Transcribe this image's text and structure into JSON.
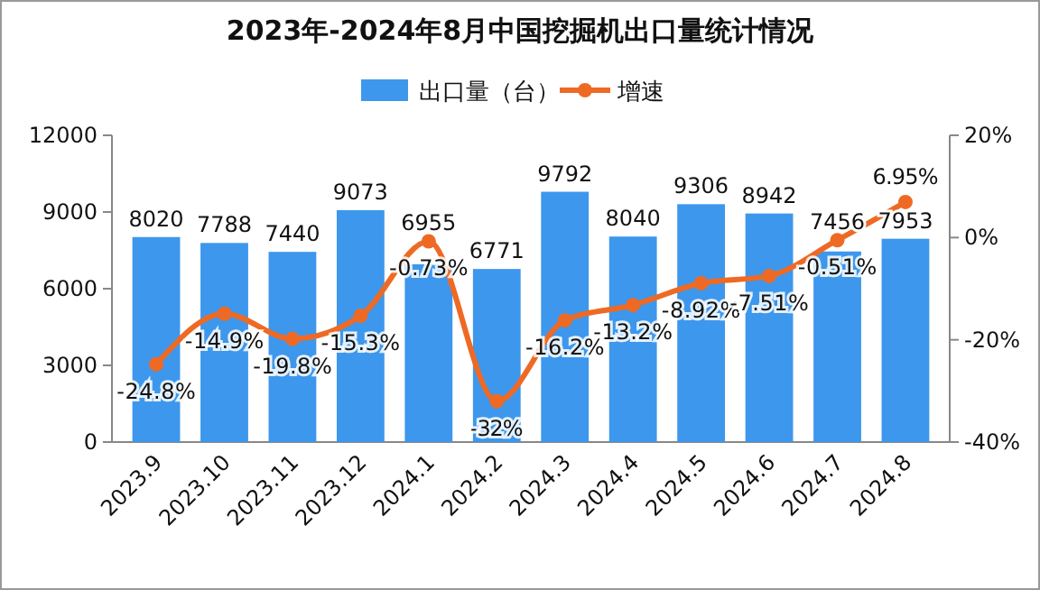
{
  "chart_data": {
    "type": "bar",
    "title": "2023年-2024年8月中国挖掘机出口量统计情况",
    "categories": [
      "2023.9",
      "2023.10",
      "2023.11",
      "2023.12",
      "2024.1",
      "2024.2",
      "2024.3",
      "2024.4",
      "2024.5",
      "2024.6",
      "2024.7",
      "2024.8"
    ],
    "series": [
      {
        "name": "出口量（台）",
        "color": "#3d97ec",
        "values": [
          8020,
          7788,
          7440,
          9073,
          6955,
          6771,
          9792,
          8040,
          9306,
          8942,
          7456,
          7953
        ]
      },
      {
        "name": "增速",
        "type": "line",
        "axis": "y2",
        "color": "#ee6a24",
        "marker": "circle",
        "values": [
          -24.8,
          -14.9,
          -19.8,
          -15.3,
          -0.73,
          -32,
          -16.2,
          -13.2,
          -8.92,
          -7.51,
          -0.51,
          6.95
        ],
        "value_labels": [
          "-24.8%",
          "-14.9%",
          "-19.8%",
          "-15.3%",
          "-0.73%",
          "-32%",
          "-16.2%",
          "-13.2%",
          "-8.92%",
          "-7.51%",
          "-0.51%",
          "6.95%"
        ]
      }
    ],
    "data_labels": true,
    "ylim": [
      0,
      12000
    ],
    "yticks": [
      0,
      3000,
      6000,
      9000,
      12000
    ],
    "y2lim": [
      -40,
      20
    ],
    "y2ticks": [
      {
        "value": -40,
        "label": "-40%"
      },
      {
        "value": -20,
        "label": "-20%"
      },
      {
        "value": 0,
        "label": "0%"
      },
      {
        "value": 20,
        "label": "20%"
      }
    ],
    "grid": false,
    "legend": "top"
  }
}
